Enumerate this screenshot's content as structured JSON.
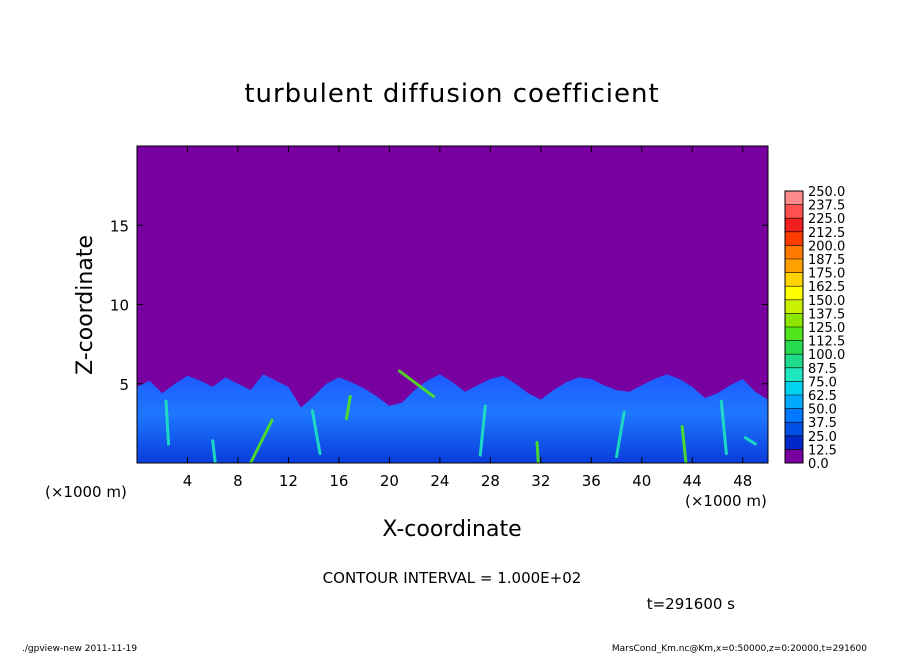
{
  "chart_data": {
    "type": "heatmap",
    "title": "turbulent diffusion coefficient",
    "xlabel": "X-coordinate",
    "ylabel": "Z-coordinate",
    "x_unit_left": "(×1000 m)",
    "x_unit_right": "(×1000 m)",
    "xlim": [
      0,
      50
    ],
    "ylim": [
      0,
      20
    ],
    "x_ticks": [
      "4",
      "8",
      "12",
      "16",
      "20",
      "24",
      "28",
      "32",
      "36",
      "40",
      "44",
      "48"
    ],
    "y_ticks": [
      "5",
      "10",
      "15"
    ],
    "contour_interval_label": "CONTOUR INTERVAL = 1.000E+02",
    "time_label": "t=291600 s",
    "colorbar": {
      "labels": [
        "250.0",
        "237.5",
        "225.0",
        "212.5",
        "200.0",
        "187.5",
        "175.0",
        "162.5",
        "150.0",
        "137.5",
        "125.0",
        "112.5",
        "100.0",
        "87.5",
        "75.0",
        "62.5",
        "50.0",
        "37.5",
        "25.0",
        "12.5",
        "0.0"
      ],
      "colors": [
        "#ff8c8c",
        "#ff5050",
        "#f01e1e",
        "#ff3c00",
        "#ff7800",
        "#ffa000",
        "#ffd200",
        "#ffff00",
        "#c8f000",
        "#8ce600",
        "#50e61e",
        "#28dc50",
        "#1edc8c",
        "#1ee6be",
        "#00d2f0",
        "#00aaff",
        "#0078ff",
        "#0050e6",
        "#0028c8",
        "#0000b4",
        "#7800a0"
      ]
    },
    "background_value_color": "#7800a0",
    "boundary_layer_top_km": [
      4.8,
      5.2,
      4.4,
      5.0,
      5.5,
      5.2,
      4.8,
      5.4,
      5.0,
      4.6,
      5.6,
      5.2,
      4.8,
      3.5,
      4.2,
      5.0,
      5.4,
      5.1,
      4.7,
      4.2,
      3.6,
      3.8,
      4.6,
      5.2,
      5.6,
      5.1,
      4.5,
      4.9,
      5.3,
      5.5,
      5.0,
      4.4,
      4.0,
      4.6,
      5.1,
      5.4,
      5.3,
      4.9,
      4.6,
      4.5,
      4.9,
      5.3,
      5.6,
      5.3,
      4.8,
      4.1,
      4.4,
      4.9,
      5.3,
      4.5,
      4.0
    ],
    "footer_left": "./gpview-new   2011-11-19",
    "footer_right": "MarsCond_Km.nc@Km,x=0:50000,z=0:20000,t=291600"
  }
}
